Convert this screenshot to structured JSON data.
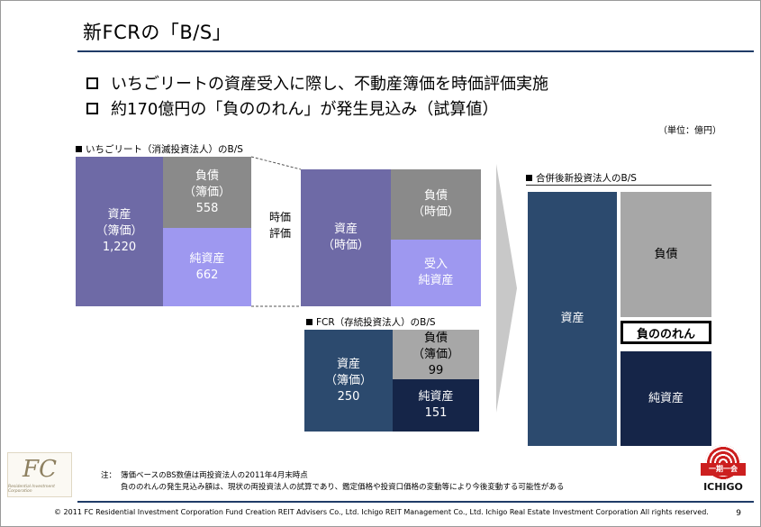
{
  "title": "新FCRの「B/S」",
  "bullets": [
    "いちごリートの資産受入に際し、不動産簿価を時価評価実施",
    "約170億円の「負ののれん」が発生見込み（試算値）"
  ],
  "unit": "（単位：億円）",
  "left_section": {
    "label": "いちごリート（消滅投資法人）のB/S",
    "assets": {
      "l1": "資産",
      "l2": "（簿価）",
      "value": "1,220"
    },
    "liabilities": {
      "l1": "負債",
      "l2": "（簿価）",
      "value": "558"
    },
    "net_assets": {
      "l1": "純資産",
      "value": "662"
    }
  },
  "revaluation_label": {
    "l1": "時価",
    "l2": "評価"
  },
  "middle_section": {
    "assets": {
      "l1": "資産",
      "l2": "（時価）"
    },
    "liabilities": {
      "l1": "負債",
      "l2": "（時価）"
    },
    "net_assets": {
      "l1": "受入",
      "l2": "純資産"
    }
  },
  "fcr_section": {
    "label": "FCR（存続投資法人）のB/S",
    "assets": {
      "l1": "資産",
      "l2": "（簿価）",
      "value": "250"
    },
    "liabilities": {
      "l1": "負債",
      "l2": "（簿価）",
      "value": "99"
    },
    "net_assets": {
      "l1": "純資産",
      "value": "151"
    }
  },
  "right_section": {
    "label": "合併後新投資法人のB/S",
    "assets": "資産",
    "liabilities": "負債",
    "negative_goodwill": "負ののれん",
    "net_assets": "純資産"
  },
  "notes": {
    "lead": "注：",
    "line1": "簿価ベースのBS数値は両投資法人の2011年4月末時点",
    "line2": "負ののれんの発生見込み額は、現状の両投資法人の試算であり、鑑定価格や投資口価格の変動等により今後変動する可能性がある"
  },
  "footer": "© 2011 FC Residential Investment Corporation   Fund Creation REIT Advisers Co., Ltd.    Ichigo REIT Management Co., Ltd.    Ichigo Real Estate Investment Corporation    All rights reserved.",
  "page_number": "9",
  "logos": {
    "fc_monogram": "FC",
    "fc_subtitle": "Residential Investment Corporation",
    "ichigo_band": "一期一会",
    "ichigo_word": "ICHIGO"
  },
  "colors": {
    "book_assets": "#6e6aa6",
    "liabilities_gray": "#8a8a8a",
    "net_assets_lavender": "#9e98f0",
    "fcr_navy": "#2c4a6e",
    "deep_navy": "#152548",
    "title_rule": "#1f3b67",
    "arrow": "#c8c8c8",
    "ichigo_red": "#cc1f1f"
  }
}
